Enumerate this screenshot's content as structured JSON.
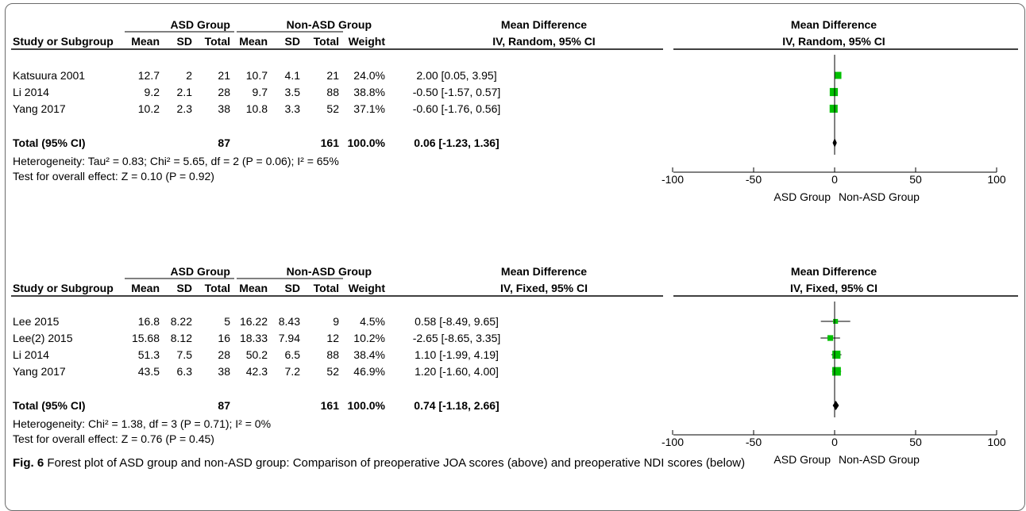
{
  "colors": {
    "marker": "#00c000",
    "diamond": "#000000",
    "line": "#000000"
  },
  "caption": {
    "label": "Fig. 6",
    "text": "Forest plot of ASD group and non-ASD group: Comparison of preoperative JOA scores (above) and preoperative NDI scores (below)"
  },
  "chart_data": [
    {
      "type": "forest",
      "group_headers": {
        "exp": "ASD Group",
        "ctl": "Non-ASD Group",
        "effect": "Mean Difference"
      },
      "col_headers": [
        "Study or Subgroup",
        "Mean",
        "SD",
        "Total",
        "Mean",
        "SD",
        "Total",
        "Weight",
        "IV, Random, 95% CI"
      ],
      "plot_header": {
        "title": "Mean Difference",
        "method": "IV, Random, 95% CI"
      },
      "studies": [
        {
          "name": "Katsuura 2001",
          "mean1": "12.7",
          "sd1": "2",
          "n1": "21",
          "mean2": "10.7",
          "sd2": "4.1",
          "n2": "21",
          "weight": "24.0%",
          "ci": "2.00 [0.05, 3.95]",
          "md": 2.0,
          "lo": 0.05,
          "hi": 3.95,
          "w": 24.0
        },
        {
          "name": "Li 2014",
          "mean1": "9.2",
          "sd1": "2.1",
          "n1": "28",
          "mean2": "9.7",
          "sd2": "3.5",
          "n2": "88",
          "weight": "38.8%",
          "ci": "-0.50 [-1.57, 0.57]",
          "md": -0.5,
          "lo": -1.57,
          "hi": 0.57,
          "w": 38.8
        },
        {
          "name": "Yang 2017",
          "mean1": "10.2",
          "sd1": "2.3",
          "n1": "38",
          "mean2": "10.8",
          "sd2": "3.3",
          "n2": "52",
          "weight": "37.1%",
          "ci": "-0.60 [-1.76, 0.56]",
          "md": -0.6,
          "lo": -1.76,
          "hi": 0.56,
          "w": 37.1
        }
      ],
      "total": {
        "label": "Total (95% CI)",
        "n1": "87",
        "n2": "161",
        "weight": "100.0%",
        "ci": "0.06 [-1.23, 1.36]",
        "md": 0.06,
        "lo": -1.23,
        "hi": 1.36
      },
      "heterogeneity": "Heterogeneity: Tau² = 0.83; Chi² = 5.65, df = 2 (P = 0.06); I² = 65%",
      "overall": "Test for overall effect: Z = 0.10 (P = 0.92)",
      "axis": {
        "xlim": [
          -100,
          100
        ],
        "ticks": [
          -100,
          -50,
          0,
          50,
          100
        ],
        "tick_labels": [
          "-100",
          "-50",
          "0",
          "50",
          "100"
        ],
        "left_label": "ASD Group",
        "right_label": "Non-ASD Group"
      }
    },
    {
      "type": "forest",
      "group_headers": {
        "exp": "ASD Group",
        "ctl": "Non-ASD Group",
        "effect": "Mean Difference"
      },
      "col_headers": [
        "Study or Subgroup",
        "Mean",
        "SD",
        "Total",
        "Mean",
        "SD",
        "Total",
        "Weight",
        "IV, Fixed, 95% CI"
      ],
      "plot_header": {
        "title": "Mean Difference",
        "method": "IV, Fixed, 95% CI"
      },
      "studies": [
        {
          "name": "Lee 2015",
          "mean1": "16.8",
          "sd1": "8.22",
          "n1": "5",
          "mean2": "16.22",
          "sd2": "8.43",
          "n2": "9",
          "weight": "4.5%",
          "ci": "0.58 [-8.49, 9.65]",
          "md": 0.58,
          "lo": -8.49,
          "hi": 9.65,
          "w": 4.5
        },
        {
          "name": "Lee(2) 2015",
          "mean1": "15.68",
          "sd1": "8.12",
          "n1": "16",
          "mean2": "18.33",
          "sd2": "7.94",
          "n2": "12",
          "weight": "10.2%",
          "ci": "-2.65 [-8.65, 3.35]",
          "md": -2.65,
          "lo": -8.65,
          "hi": 3.35,
          "w": 10.2
        },
        {
          "name": "Li 2014",
          "mean1": "51.3",
          "sd1": "7.5",
          "n1": "28",
          "mean2": "50.2",
          "sd2": "6.5",
          "n2": "88",
          "weight": "38.4%",
          "ci": "1.10 [-1.99, 4.19]",
          "md": 1.1,
          "lo": -1.99,
          "hi": 4.19,
          "w": 38.4
        },
        {
          "name": "Yang 2017",
          "mean1": "43.5",
          "sd1": "6.3",
          "n1": "38",
          "mean2": "42.3",
          "sd2": "7.2",
          "n2": "52",
          "weight": "46.9%",
          "ci": "1.20 [-1.60, 4.00]",
          "md": 1.2,
          "lo": -1.6,
          "hi": 4.0,
          "w": 46.9
        }
      ],
      "total": {
        "label": "Total (95% CI)",
        "n1": "87",
        "n2": "161",
        "weight": "100.0%",
        "ci": "0.74 [-1.18, 2.66]",
        "md": 0.74,
        "lo": -1.18,
        "hi": 2.66
      },
      "heterogeneity": "Heterogeneity: Chi² = 1.38, df = 3 (P = 0.71); I² = 0%",
      "overall": "Test for overall effect: Z = 0.76 (P = 0.45)",
      "axis": {
        "xlim": [
          -100,
          100
        ],
        "ticks": [
          -100,
          -50,
          0,
          50,
          100
        ],
        "tick_labels": [
          "-100",
          "-50",
          "0",
          "50",
          "100"
        ],
        "left_label": "ASD Group",
        "right_label": "Non-ASD Group"
      }
    }
  ]
}
